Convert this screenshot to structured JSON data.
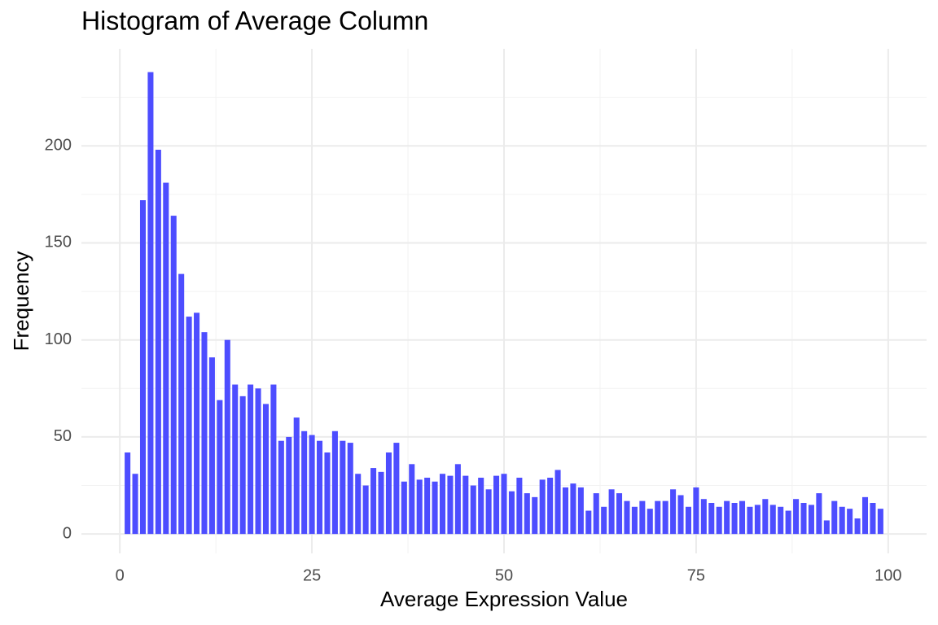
{
  "chart_data": {
    "type": "histogram",
    "title": "Histogram of Average Column",
    "x_label": "Average Expression Value",
    "y_label": "Frequency",
    "bins": [
      0.5,
      1.5,
      2.5,
      3.5,
      4.5,
      5.5,
      6.5,
      7.5,
      8.5,
      9.5,
      10.5,
      11.5,
      12.5,
      13.5,
      14.5,
      15.5,
      16.5,
      17.5,
      18.5,
      19.5,
      20.5,
      21.5,
      22.5,
      23.5,
      24.5,
      25.5,
      26.5,
      27.5,
      28.5,
      29.5,
      30.5,
      31.5,
      32.5,
      33.5,
      34.5,
      35.5,
      36.5,
      37.5,
      38.5,
      39.5,
      40.5,
      41.5,
      42.5,
      43.5,
      44.5,
      45.5,
      46.5,
      47.5,
      48.5,
      49.5,
      50.5,
      51.5,
      52.5,
      53.5,
      54.5,
      55.5,
      56.5,
      57.5,
      58.5,
      59.5,
      60.5,
      61.5,
      62.5,
      63.5,
      64.5,
      65.5,
      66.5,
      67.5,
      68.5,
      69.5,
      70.5,
      71.5,
      72.5,
      73.5,
      74.5,
      75.5,
      76.5,
      77.5,
      78.5,
      79.5,
      80.5,
      81.5,
      82.5,
      83.5,
      84.5,
      85.5,
      86.5,
      87.5,
      88.5,
      89.5,
      90.5,
      91.5,
      92.5,
      93.5,
      94.5,
      95.5,
      96.5,
      97.5,
      98.5,
      99.5
    ],
    "values": [
      42,
      31,
      172,
      238,
      198,
      181,
      164,
      134,
      112,
      114,
      104,
      91,
      69,
      100,
      77,
      71,
      77,
      75,
      67,
      77,
      48,
      50,
      60,
      53,
      51,
      48,
      42,
      53,
      48,
      47,
      31,
      25,
      34,
      32,
      42,
      47,
      27,
      36,
      28,
      29,
      27,
      31,
      30,
      36,
      30,
      25,
      29,
      23,
      30,
      31,
      22,
      29,
      21,
      19,
      28,
      29,
      33,
      24,
      26,
      24,
      12,
      21,
      14,
      23,
      21,
      17,
      14,
      17,
      13,
      17,
      17,
      23,
      20,
      14,
      24,
      18,
      16,
      14,
      17,
      16,
      17,
      14,
      15,
      18,
      15,
      14,
      12,
      18,
      16,
      15,
      21,
      7,
      17,
      14,
      13,
      8,
      19,
      16,
      13
    ],
    "color": "#4d4dff",
    "xlim": [
      -5,
      105
    ],
    "ylim": [
      -10,
      250
    ],
    "xticks": [
      0,
      25,
      50,
      75,
      100
    ],
    "yticks": [
      0,
      50,
      100,
      150,
      200
    ],
    "xminor": [
      12.5,
      37.5,
      62.5,
      87.5
    ],
    "yminor": [
      25,
      75,
      125,
      175,
      225
    ],
    "grid": true
  }
}
